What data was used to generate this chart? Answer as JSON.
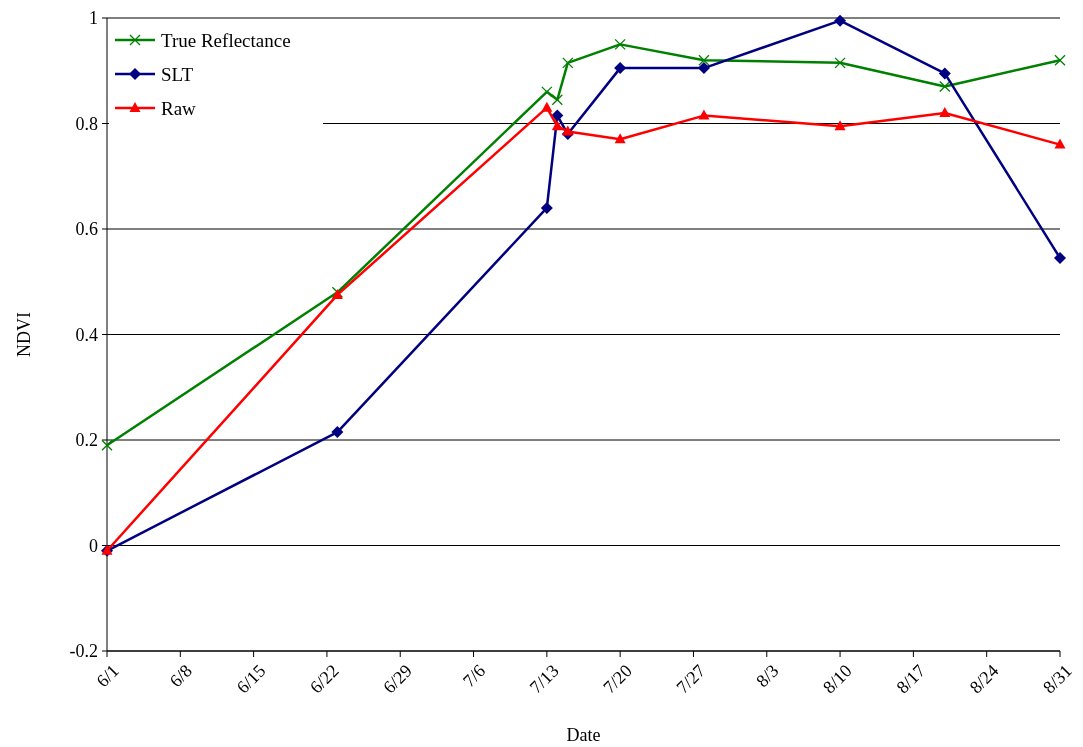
{
  "chart_data": {
    "type": "line",
    "xlabel": "Date",
    "ylabel": "NDVI",
    "ylim": [
      -0.2,
      1
    ],
    "yticks": [
      -0.2,
      0,
      0.2,
      0.4,
      0.6,
      0.8,
      1
    ],
    "xlim": [
      "--06-01",
      "--08-31"
    ],
    "xticks": [
      {
        "value": "--06-01",
        "label": "6/1"
      },
      {
        "value": "--06-08",
        "label": "6/8"
      },
      {
        "value": "--06-15",
        "label": "6/15"
      },
      {
        "value": "--06-22",
        "label": "6/22"
      },
      {
        "value": "--06-29",
        "label": "6/29"
      },
      {
        "value": "--07-06",
        "label": "7/6"
      },
      {
        "value": "--07-13",
        "label": "7/13"
      },
      {
        "value": "--07-20",
        "label": "7/20"
      },
      {
        "value": "--07-27",
        "label": "7/27"
      },
      {
        "value": "--08-03",
        "label": "8/3"
      },
      {
        "value": "--08-10",
        "label": "8/10"
      },
      {
        "value": "--08-17",
        "label": "8/17"
      },
      {
        "value": "--08-24",
        "label": "8/24"
      },
      {
        "value": "--08-31",
        "label": "8/31"
      }
    ],
    "grid": "y",
    "legend": "top left",
    "line_style": "solid",
    "series": [
      {
        "name": "True Reflectance",
        "color": "#008000",
        "marker": "cross",
        "x": [
          "--06-01",
          "--06-23",
          "--07-13",
          "--07-14",
          "--07-15",
          "--07-20",
          "--07-28",
          "--08-10",
          "--08-20",
          "--08-31"
        ],
        "values": [
          0.19,
          0.48,
          0.86,
          0.845,
          0.915,
          0.95,
          0.92,
          0.915,
          0.87,
          0.92
        ]
      },
      {
        "name": "SLT",
        "color": "#000080",
        "marker": "diamond",
        "x": [
          "--06-01",
          "--06-23",
          "--07-13",
          "--07-14",
          "--07-15",
          "--07-20",
          "--07-28",
          "--08-10",
          "--08-20",
          "--08-31"
        ],
        "values": [
          -0.01,
          0.215,
          0.64,
          0.815,
          0.78,
          0.905,
          0.905,
          0.995,
          0.895,
          0.545
        ]
      },
      {
        "name": "Raw",
        "color": "#ff0000",
        "marker": "triangle",
        "x": [
          "--06-01",
          "--06-23",
          "--07-13",
          "--07-14",
          "--07-15",
          "--07-20",
          "--07-28",
          "--08-10",
          "--08-20",
          "--08-31"
        ],
        "values": [
          -0.01,
          0.475,
          0.83,
          0.795,
          0.785,
          0.77,
          0.815,
          0.795,
          0.82,
          0.76
        ]
      }
    ]
  }
}
